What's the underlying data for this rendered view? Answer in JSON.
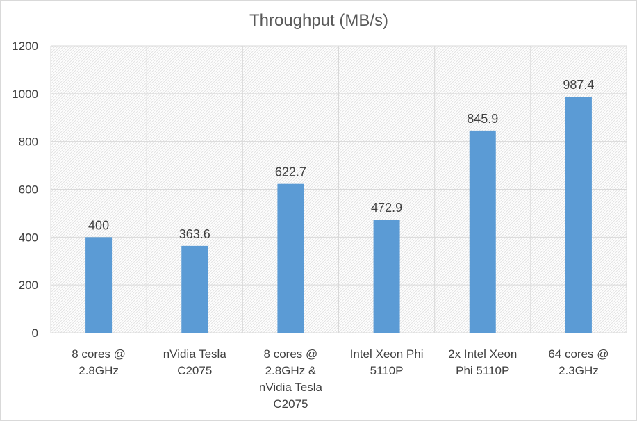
{
  "chart_data": {
    "type": "bar",
    "title": "Throughput (MB/s)",
    "xlabel": "",
    "ylabel": "",
    "categories": [
      [
        "8 cores @",
        "2.8GHz"
      ],
      [
        "nVidia Tesla",
        "C2075"
      ],
      [
        "8 cores @",
        "2.8GHz &",
        "nVidia Tesla",
        "C2075"
      ],
      [
        "Intel Xeon Phi",
        "5110P"
      ],
      [
        "2x Intel Xeon",
        "Phi 5110P"
      ],
      [
        "64 cores @",
        "2.3GHz"
      ]
    ],
    "values": [
      400,
      363.6,
      622.7,
      472.9,
      845.9,
      987.4
    ],
    "value_labels": [
      "400",
      "363.6",
      "622.7",
      "472.9",
      "845.9",
      "987.4"
    ],
    "ylim": [
      0,
      1200
    ],
    "yticks": [
      0,
      200,
      400,
      600,
      800,
      1000,
      1200
    ],
    "grid": true,
    "legend": "none",
    "colors": {
      "bar": "#5b9bd5",
      "grid": "#d9d9d9",
      "plot_pattern": "#e3e3e3"
    }
  }
}
